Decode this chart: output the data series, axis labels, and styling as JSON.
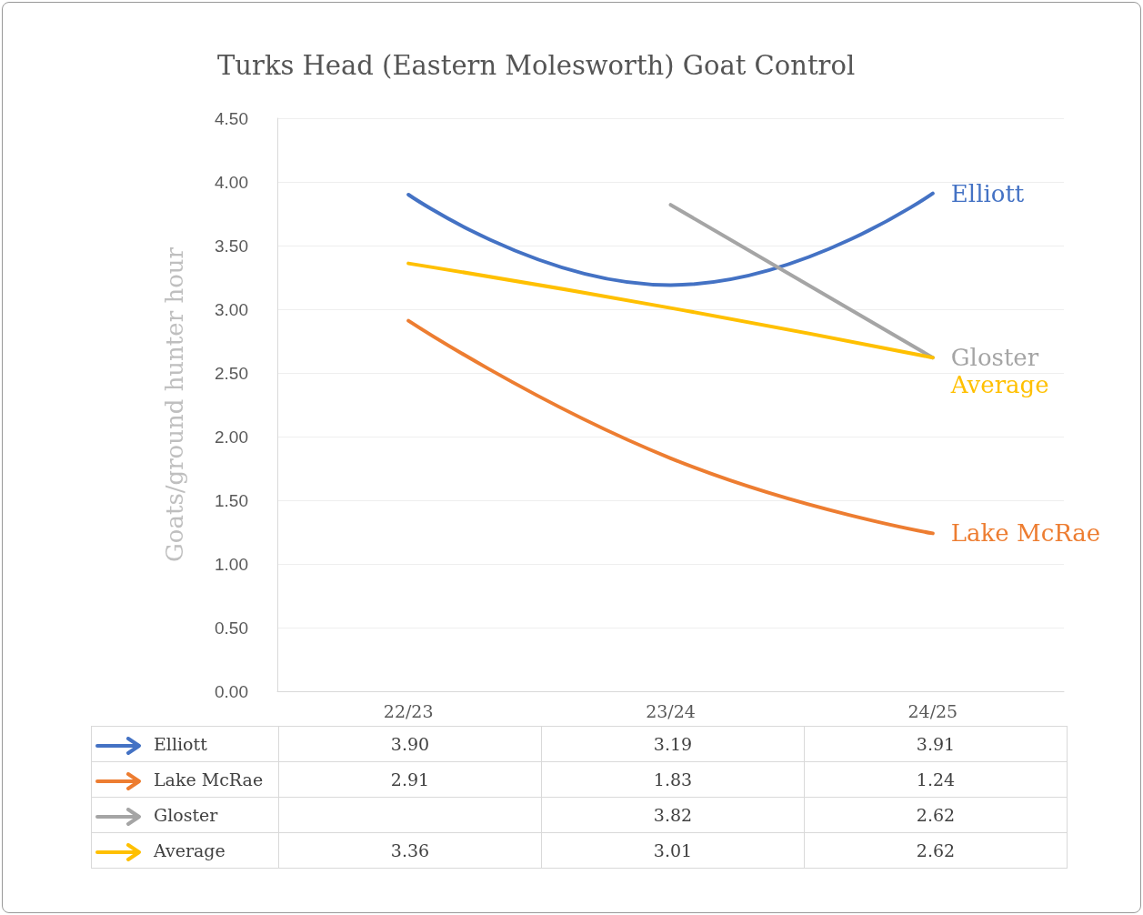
{
  "chart_data": {
    "type": "line",
    "title": "Turks Head (Eastern Molesworth) Goat Control",
    "ylabel": "Goats/ground hunter hour",
    "categories": [
      "22/23",
      "23/24",
      "24/25"
    ],
    "series": [
      {
        "name": "Elliott",
        "color": "#4472c4",
        "values": [
          3.9,
          3.19,
          3.91
        ],
        "value_labels": [
          "3.90",
          "3.19",
          "3.91"
        ]
      },
      {
        "name": "Lake McRae",
        "color": "#ed7d31",
        "values": [
          2.91,
          1.83,
          1.24
        ],
        "value_labels": [
          "2.91",
          "1.83",
          "1.24"
        ]
      },
      {
        "name": "Gloster",
        "color": "#a5a5a5",
        "values": [
          null,
          3.82,
          2.62
        ],
        "value_labels": [
          null,
          "3.82",
          "2.62"
        ]
      },
      {
        "name": "Average",
        "color": "#ffc000",
        "values": [
          3.36,
          3.01,
          2.62
        ],
        "value_labels": [
          "3.36",
          "3.01",
          "2.62"
        ]
      }
    ],
    "ylim": [
      0,
      4.5
    ],
    "yticks": [
      {
        "value": 0,
        "label": "0.00"
      },
      {
        "value": 0.5,
        "label": "0.50"
      },
      {
        "value": 1,
        "label": "1.00"
      },
      {
        "value": 1.5,
        "label": "1.50"
      },
      {
        "value": 2,
        "label": "2.00"
      },
      {
        "value": 2.5,
        "label": "2.50"
      },
      {
        "value": 3,
        "label": "3.00"
      },
      {
        "value": 3.5,
        "label": "3.50"
      },
      {
        "value": 4,
        "label": "4.00"
      },
      {
        "value": 4.5,
        "label": "4.50"
      }
    ],
    "grid": "y",
    "legend": "bottom",
    "marker": "none",
    "line_style": "solid"
  }
}
